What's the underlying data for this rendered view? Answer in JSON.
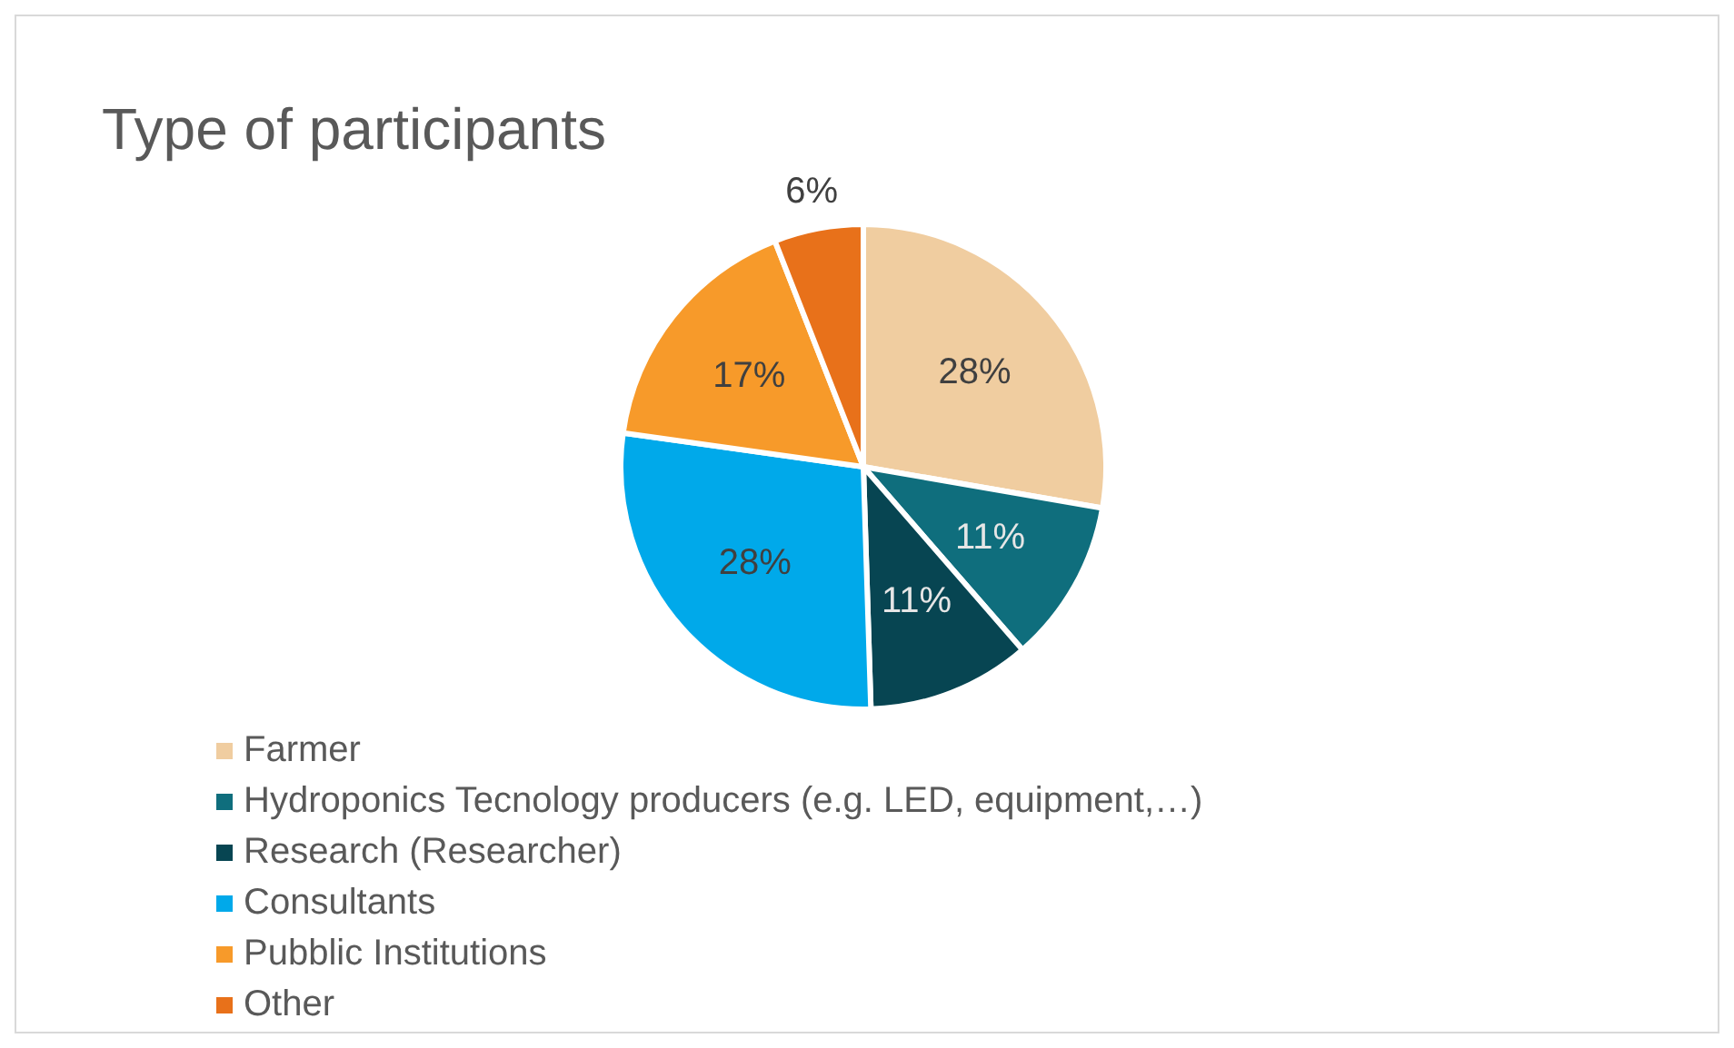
{
  "chart_data": {
    "type": "pie",
    "title": "Type of participants",
    "categories": [
      "Farmer",
      "Hydroponics Tecnology producers (e.g. LED, equipment,…)",
      "Research (Researcher)",
      "Consultants",
      "Pubblic Institutions",
      "Other"
    ],
    "values": [
      28,
      11,
      11,
      28,
      17,
      6
    ],
    "colors": [
      "#f0cda0",
      "#0f6e7d",
      "#074552",
      "#00a9ea",
      "#f79a2a",
      "#e8711a"
    ],
    "value_labels": [
      "28%",
      "11%",
      "11%",
      "28%",
      "17%",
      "6%"
    ],
    "legend": "bottom"
  }
}
